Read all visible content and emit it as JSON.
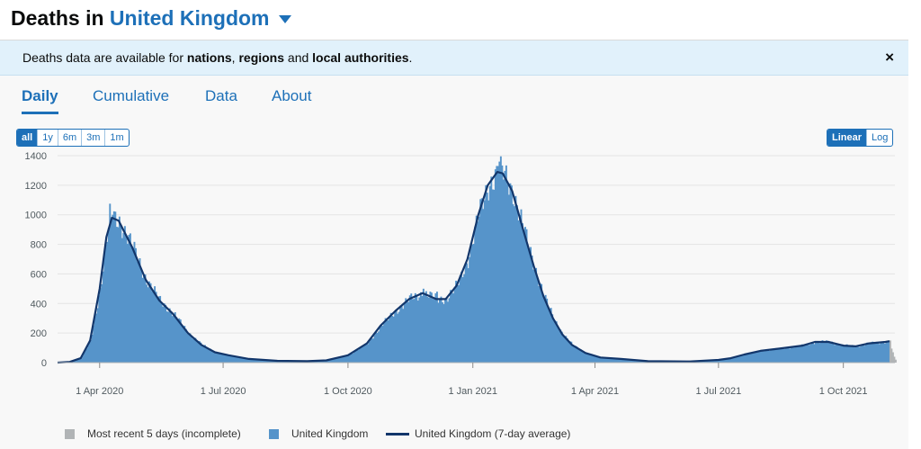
{
  "header": {
    "title_prefix": "Deaths in",
    "area_name": "United Kingdom",
    "caret_icon": "caret-down-icon"
  },
  "notice": {
    "text_1": "Deaths data are available for ",
    "link_1": "nations",
    "sep_1": ", ",
    "link_2": "regions",
    "sep_2": " and ",
    "link_3": "local authorities",
    "text_end": ".",
    "close_label": "×"
  },
  "tabs": [
    {
      "label": "Daily",
      "active": true
    },
    {
      "label": "Cumulative",
      "active": false
    },
    {
      "label": "Data",
      "active": false
    },
    {
      "label": "About",
      "active": false
    }
  ],
  "range_buttons": [
    {
      "label": "all",
      "active": true
    },
    {
      "label": "1y",
      "active": false
    },
    {
      "label": "6m",
      "active": false
    },
    {
      "label": "3m",
      "active": false
    },
    {
      "label": "1m",
      "active": false
    }
  ],
  "scale_buttons": [
    {
      "label": "Linear",
      "active": true
    },
    {
      "label": "Log",
      "active": false
    }
  ],
  "colors": {
    "bar": "#5694ca",
    "bar_edge": "#2b73bd",
    "average_line": "#12366b",
    "incomplete": "#b1b4b6",
    "accent": "#1d70b8"
  },
  "chart_data": {
    "type": "bar",
    "y_ticks": [
      "0",
      "200",
      "400",
      "600",
      "800",
      "1000",
      "1200",
      "1400"
    ],
    "ylim": [
      0,
      1400
    ],
    "x_start": "2020-03-01",
    "x_end": "2021-11-08",
    "x_ticks": [
      {
        "date": "2020-04-01",
        "label": "1 Apr 2020"
      },
      {
        "date": "2020-07-01",
        "label": "1 Jul 2020"
      },
      {
        "date": "2020-10-01",
        "label": "1 Oct 2020"
      },
      {
        "date": "2021-01-01",
        "label": "1 Jan 2021"
      },
      {
        "date": "2021-04-01",
        "label": "1 Apr 2021"
      },
      {
        "date": "2021-07-01",
        "label": "1 Jul 2021"
      },
      {
        "date": "2021-10-01",
        "label": "1 Oct 2021"
      }
    ],
    "series": [
      {
        "name": "United Kingdom (7-day average)",
        "type": "line",
        "points": [
          [
            "2020-03-01",
            0
          ],
          [
            "2020-03-10",
            5
          ],
          [
            "2020-03-18",
            30
          ],
          [
            "2020-03-25",
            150
          ],
          [
            "2020-04-01",
            500
          ],
          [
            "2020-04-06",
            850
          ],
          [
            "2020-04-10",
            980
          ],
          [
            "2020-04-15",
            960
          ],
          [
            "2020-04-25",
            780
          ],
          [
            "2020-05-05",
            560
          ],
          [
            "2020-05-15",
            420
          ],
          [
            "2020-05-25",
            330
          ],
          [
            "2020-06-05",
            200
          ],
          [
            "2020-06-15",
            120
          ],
          [
            "2020-06-25",
            70
          ],
          [
            "2020-07-05",
            50
          ],
          [
            "2020-07-20",
            25
          ],
          [
            "2020-08-10",
            12
          ],
          [
            "2020-09-01",
            10
          ],
          [
            "2020-09-15",
            15
          ],
          [
            "2020-10-01",
            50
          ],
          [
            "2020-10-15",
            130
          ],
          [
            "2020-10-25",
            250
          ],
          [
            "2020-11-05",
            350
          ],
          [
            "2020-11-15",
            430
          ],
          [
            "2020-11-25",
            470
          ],
          [
            "2020-12-05",
            430
          ],
          [
            "2020-12-12",
            430
          ],
          [
            "2020-12-20",
            520
          ],
          [
            "2020-12-28",
            700
          ],
          [
            "2021-01-05",
            1000
          ],
          [
            "2021-01-12",
            1200
          ],
          [
            "2021-01-19",
            1290
          ],
          [
            "2021-01-23",
            1280
          ],
          [
            "2021-01-30",
            1160
          ],
          [
            "2021-02-07",
            900
          ],
          [
            "2021-02-15",
            650
          ],
          [
            "2021-02-22",
            450
          ],
          [
            "2021-03-01",
            300
          ],
          [
            "2021-03-08",
            190
          ],
          [
            "2021-03-15",
            120
          ],
          [
            "2021-03-25",
            65
          ],
          [
            "2021-04-05",
            35
          ],
          [
            "2021-04-20",
            25
          ],
          [
            "2021-05-10",
            10
          ],
          [
            "2021-06-10",
            8
          ],
          [
            "2021-07-01",
            18
          ],
          [
            "2021-07-10",
            30
          ],
          [
            "2021-07-20",
            55
          ],
          [
            "2021-08-01",
            80
          ],
          [
            "2021-08-15",
            95
          ],
          [
            "2021-09-01",
            115
          ],
          [
            "2021-09-10",
            140
          ],
          [
            "2021-09-20",
            140
          ],
          [
            "2021-10-01",
            115
          ],
          [
            "2021-10-10",
            110
          ],
          [
            "2021-10-20",
            130
          ],
          [
            "2021-11-01",
            140
          ],
          [
            "2021-11-04",
            145
          ]
        ]
      },
      {
        "name": "United Kingdom",
        "type": "bar",
        "spikes": [
          [
            "2020-04-08",
            1075
          ],
          [
            "2020-04-10",
            1000
          ],
          [
            "2020-11-25",
            500
          ],
          [
            "2021-01-20",
            1360
          ],
          [
            "2021-01-19",
            1330
          ],
          [
            "2020-12-05",
            480
          ]
        ]
      },
      {
        "name": "Most recent 5 days (incomplete)",
        "type": "bar",
        "points": [
          [
            "2021-11-04",
            150
          ],
          [
            "2021-11-05",
            95
          ],
          [
            "2021-11-06",
            70
          ],
          [
            "2021-11-07",
            40
          ],
          [
            "2021-11-08",
            20
          ]
        ]
      }
    ],
    "legend": [
      {
        "label": "Most recent 5 days (incomplete)",
        "kind": "box",
        "color_key": "incomplete"
      },
      {
        "label": "United Kingdom",
        "kind": "box",
        "color_key": "bar"
      },
      {
        "label": "United Kingdom (7-day average)",
        "kind": "line",
        "color_key": "average_line"
      }
    ],
    "legend_position": "bottom"
  }
}
